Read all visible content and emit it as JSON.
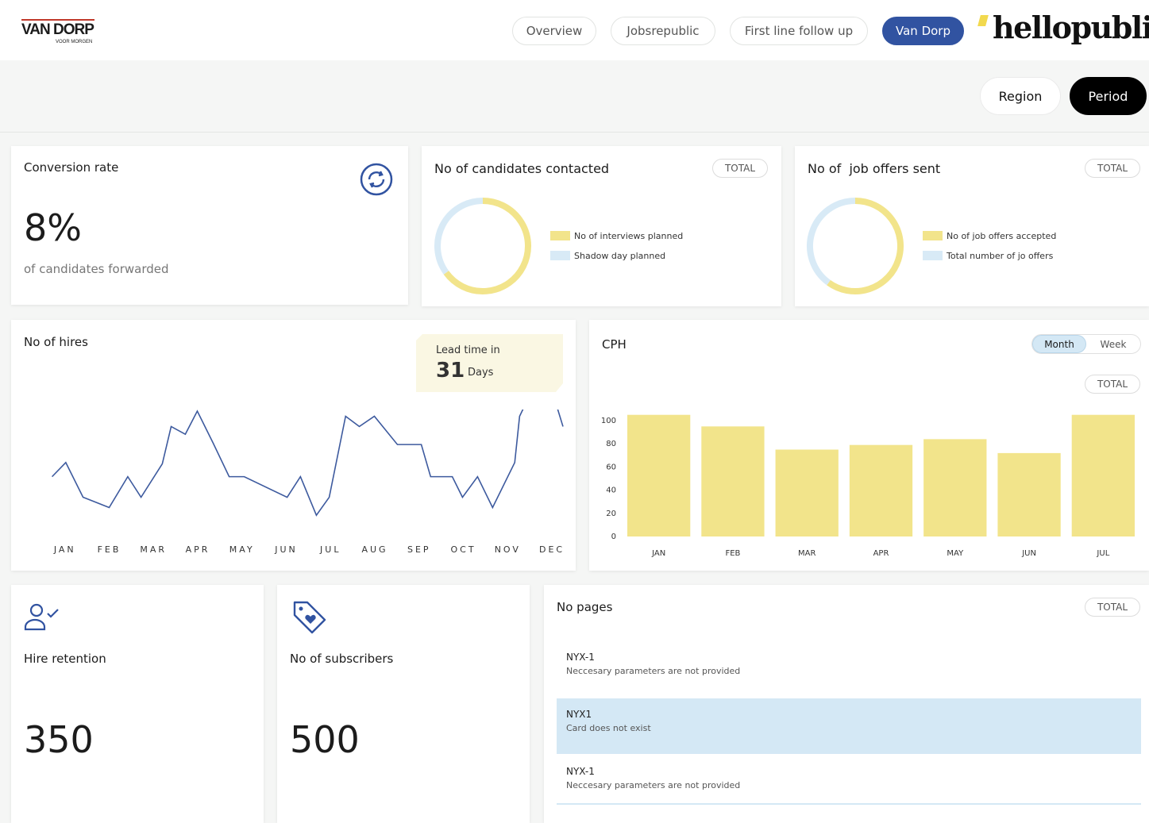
{
  "header": {
    "logo": "VAN DORP",
    "logo_tagline": "VOOR MORGEN",
    "nav": [
      "Overview",
      "Jobsrepublic",
      "First line follow up",
      "Van Dorp"
    ],
    "active_nav": 3,
    "brand": "hellopublic"
  },
  "filters": [
    "Region",
    "Period"
  ],
  "conversion": {
    "title": "Conversion rate",
    "value": "8%",
    "caption": "of candidates forwarded"
  },
  "lead_time": {
    "label": "Lead time in",
    "value": 31,
    "unit": "Days"
  },
  "retention": {
    "title": "Hire retention",
    "value": 350
  },
  "subscribers": {
    "title": "No of subscribers",
    "value": 500
  },
  "pages": {
    "title": "No pages",
    "badge": "TOTAL",
    "items": [
      {
        "code": "NYX-1",
        "message": "Neccesary parameters are not provided",
        "highlighted": false
      },
      {
        "code": "NYX1",
        "message": "Card does not exist",
        "highlighted": true
      },
      {
        "code": "NYX-1",
        "message": "Neccesary parameters are not provided",
        "highlighted": false
      }
    ]
  },
  "chart_data": [
    {
      "type": "donut",
      "title": "No of candidates contacted",
      "badge": "TOTAL",
      "categories": [
        "No of interviews planned",
        "Shadow day planned"
      ],
      "values": [
        65,
        35
      ],
      "colors": [
        "#f2e48b",
        "#d8eaf6"
      ]
    },
    {
      "type": "donut",
      "title": "No of  job offers sent",
      "badge": "TOTAL",
      "categories": [
        "No of job offers accepted",
        "Total number of jo offers"
      ],
      "values": [
        60,
        40
      ],
      "colors": [
        "#f2e48b",
        "#d8eaf6"
      ]
    },
    {
      "type": "line",
      "title": "No of hires",
      "color": "#3d5a9e",
      "x": [
        -0.29,
        0.02,
        0.41,
        1.0,
        1.42,
        1.72,
        2.2,
        2.4,
        2.72,
        2.99,
        3.35,
        3.71,
        4.05,
        5.02,
        5.32,
        5.68,
        5.97,
        6.34,
        6.65,
        6.99,
        7.51,
        8.05,
        8.26,
        8.75,
        8.98,
        9.32,
        9.66,
        10.16,
        10.27,
        10.41,
        11.09,
        11.25
      ],
      "values": [
        49,
        60,
        33,
        25,
        49,
        33,
        59,
        88,
        82,
        100,
        75,
        49,
        49,
        33,
        49,
        19,
        33,
        96,
        88,
        96,
        74,
        74,
        49,
        49,
        33,
        49,
        25,
        60,
        96,
        106,
        106,
        88
      ],
      "xlim": [
        -0.3,
        11.25
      ],
      "ylim": [
        0,
        100
      ],
      "xticks": [
        {
          "value": 0,
          "label": "JAN"
        },
        {
          "value": 1,
          "label": "FEB"
        },
        {
          "value": 2,
          "label": "MAR"
        },
        {
          "value": 3,
          "label": "APR"
        },
        {
          "value": 4,
          "label": "MAY"
        },
        {
          "value": 5,
          "label": "JUN"
        },
        {
          "value": 6,
          "label": "JUL"
        },
        {
          "value": 7,
          "label": "AUG"
        },
        {
          "value": 8,
          "label": "SEP"
        },
        {
          "value": 9,
          "label": "OCT"
        },
        {
          "value": 10,
          "label": "NOV"
        },
        {
          "value": 11,
          "label": "DEC"
        }
      ]
    },
    {
      "type": "bar",
      "title": "CPH",
      "badge": "TOTAL",
      "toggle": [
        "Month",
        "Week"
      ],
      "active_toggle": 0,
      "categories": [
        "JAN",
        "FEB",
        "MAR",
        "APR",
        "MAY",
        "JUN",
        "JUL"
      ],
      "values": [
        105,
        95,
        75,
        79,
        84,
        72,
        105
      ],
      "color": "#f2e48b",
      "ylim": [
        0,
        100
      ],
      "yticks": [
        0,
        20,
        40,
        60,
        80,
        100
      ],
      "grid": false
    }
  ]
}
